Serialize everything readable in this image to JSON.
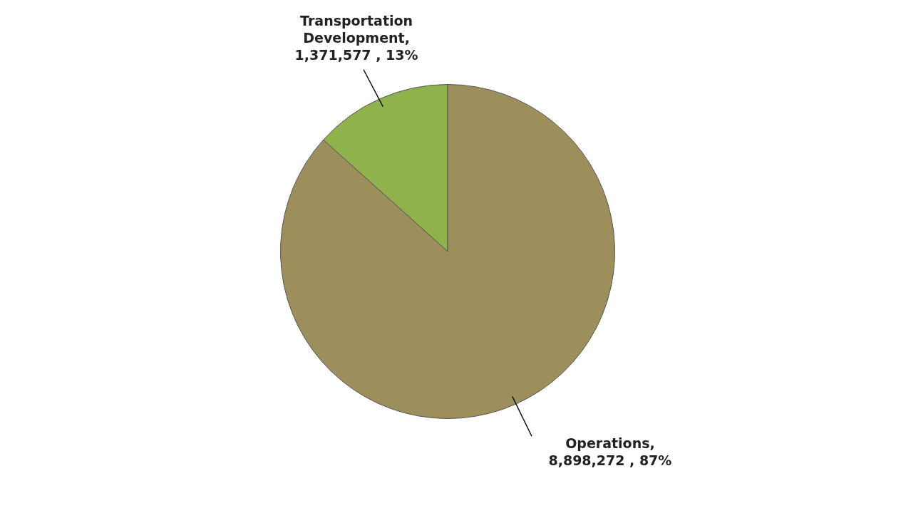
{
  "chart_data": {
    "type": "pie",
    "categories": [
      "Transportation Development",
      "Operations"
    ],
    "values": [
      1371577,
      8898272
    ],
    "colors": [
      "#8fb24c",
      "#9c8f5c"
    ],
    "value_labels": [
      ", 1,371,577 , 13%",
      ", 8,898,272 , 87%"
    ]
  }
}
